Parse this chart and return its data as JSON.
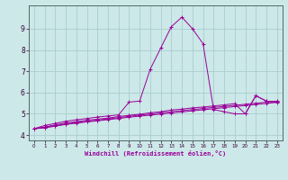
{
  "xlabel": "Windchill (Refroidissement éolien,°C)",
  "bg_color": "#cce8e8",
  "grid_color": "#aacece",
  "line_color": "#990099",
  "x_ticks": [
    0,
    1,
    2,
    3,
    4,
    5,
    6,
    7,
    8,
    9,
    10,
    11,
    12,
    13,
    14,
    15,
    16,
    17,
    18,
    19,
    20,
    21,
    22,
    23
  ],
  "y_ticks": [
    4,
    5,
    6,
    7,
    8,
    9
  ],
  "xlim": [
    -0.5,
    23.5
  ],
  "ylim": [
    3.75,
    10.1
  ],
  "series": [
    [
      4.3,
      4.45,
      4.55,
      4.65,
      4.72,
      4.78,
      4.85,
      4.9,
      4.95,
      5.55,
      5.6,
      7.1,
      8.1,
      9.1,
      9.55,
      9.0,
      8.3,
      5.2,
      5.1,
      5.0,
      5.0,
      5.85,
      5.6,
      5.55
    ],
    [
      4.3,
      4.38,
      4.48,
      4.57,
      4.63,
      4.7,
      4.75,
      4.8,
      4.87,
      4.93,
      4.98,
      5.05,
      5.1,
      5.18,
      5.22,
      5.28,
      5.32,
      5.37,
      5.42,
      5.48,
      5.0,
      5.85,
      5.6,
      5.55
    ],
    [
      4.3,
      4.36,
      4.44,
      4.53,
      4.59,
      4.65,
      4.7,
      4.76,
      4.82,
      4.88,
      4.94,
      4.99,
      5.04,
      5.1,
      5.15,
      5.2,
      5.25,
      5.3,
      5.35,
      5.4,
      5.45,
      5.5,
      5.55,
      5.6
    ],
    [
      4.3,
      4.34,
      4.42,
      4.5,
      4.56,
      4.62,
      4.67,
      4.73,
      4.78,
      4.84,
      4.89,
      4.94,
      4.99,
      5.04,
      5.09,
      5.14,
      5.19,
      5.24,
      5.29,
      5.34,
      5.39,
      5.44,
      5.49,
      5.54
    ]
  ]
}
